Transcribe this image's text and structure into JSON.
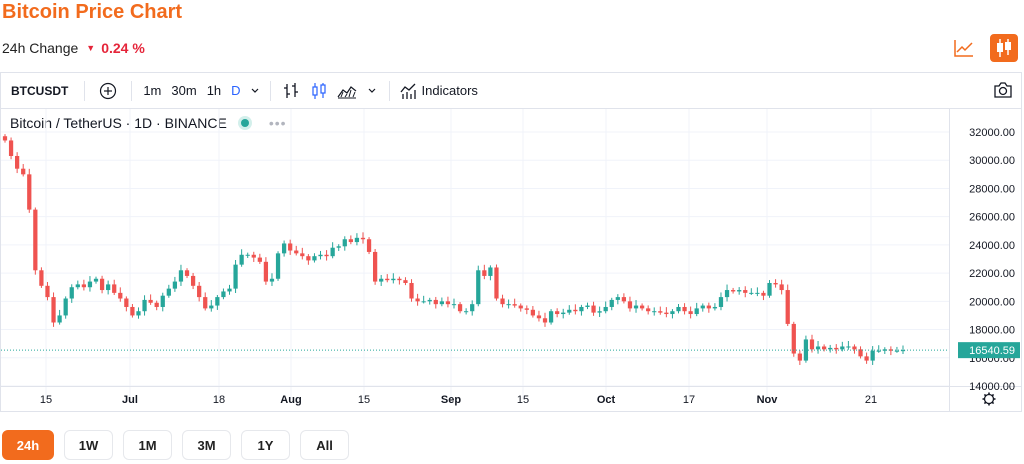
{
  "header": {
    "title": "Bitcoin Price Chart",
    "change_label": "24h Change",
    "change_value": "0.24 %",
    "change_direction": "down",
    "accent_color": "#f26b1d",
    "down_color": "#e5253a"
  },
  "top_icons": [
    "line-chart-icon",
    "candlestick-icon"
  ],
  "toolbar": {
    "symbol": "BTCUSDT",
    "timeframes": [
      "1m",
      "30m",
      "1h",
      "D"
    ],
    "active_timeframe": "D",
    "indicators_label": "Indicators"
  },
  "legend": {
    "text": "Bitcoin / TetherUS · 1D · BINANCE",
    "status_color": "#26a69a"
  },
  "range_tabs": [
    "24h",
    "1W",
    "1M",
    "3M",
    "1Y",
    "All"
  ],
  "active_range": "24h",
  "chart_data": {
    "type": "candlestick",
    "up_color": "#26a69a",
    "down_color": "#ef5350",
    "y_ticks": [
      "32000.00",
      "30000.00",
      "28000.00",
      "26000.00",
      "24000.00",
      "22000.00",
      "20000.00",
      "18000.00",
      "16000.00",
      "14000.00"
    ],
    "ylim": [
      14000,
      32000
    ],
    "x_ticks": [
      "15",
      "Jul",
      "18",
      "Aug",
      "15",
      "Sep",
      "15",
      "Oct",
      "17",
      "Nov",
      "21"
    ],
    "last_price": "16540.59",
    "last_price_value": 16540.59,
    "closes": [
      31400,
      30300,
      29400,
      29000,
      26500,
      22200,
      21100,
      20300,
      18500,
      19000,
      20200,
      21000,
      21200,
      21000,
      21400,
      21600,
      20800,
      21200,
      20600,
      20200,
      19600,
      19000,
      19300,
      20100,
      19900,
      19600,
      20400,
      20900,
      21400,
      22200,
      21800,
      21100,
      20300,
      19500,
      19700,
      20300,
      20700,
      20900,
      22600,
      23300,
      23300,
      23100,
      22800,
      21400,
      21600,
      23400,
      24100,
      23600,
      23400,
      23200,
      22900,
      23200,
      23300,
      23200,
      23800,
      23900,
      24400,
      24200,
      24500,
      24400,
      23500,
      21400,
      21600,
      21500,
      21600,
      21500,
      21300,
      20200,
      20000,
      20000,
      20100,
      19800,
      20000,
      19800,
      19800,
      19300,
      19300,
      19800,
      22200,
      21800,
      22400,
      20200,
      19800,
      19800,
      19700,
      19500,
      19400,
      19000,
      18800,
      18500,
      19300,
      19100,
      19200,
      19400,
      19300,
      19600,
      19700,
      19200,
      19300,
      19600,
      20100,
      20300,
      20000,
      19500,
      19700,
      19500,
      19300,
      19300,
      19200,
      19100,
      19300,
      19600,
      19300,
      19100,
      19500,
      19700,
      19500,
      19600,
      20300,
      20800,
      20700,
      20800,
      20600,
      20600,
      20600,
      20400,
      21300,
      21200,
      20800,
      18400,
      16300,
      15800,
      17300,
      16600,
      16800,
      16600,
      16700,
      16600,
      16800,
      16800,
      16600,
      16100,
      15800,
      16500,
      16500,
      16600,
      16500,
      16500,
      16540
    ]
  }
}
